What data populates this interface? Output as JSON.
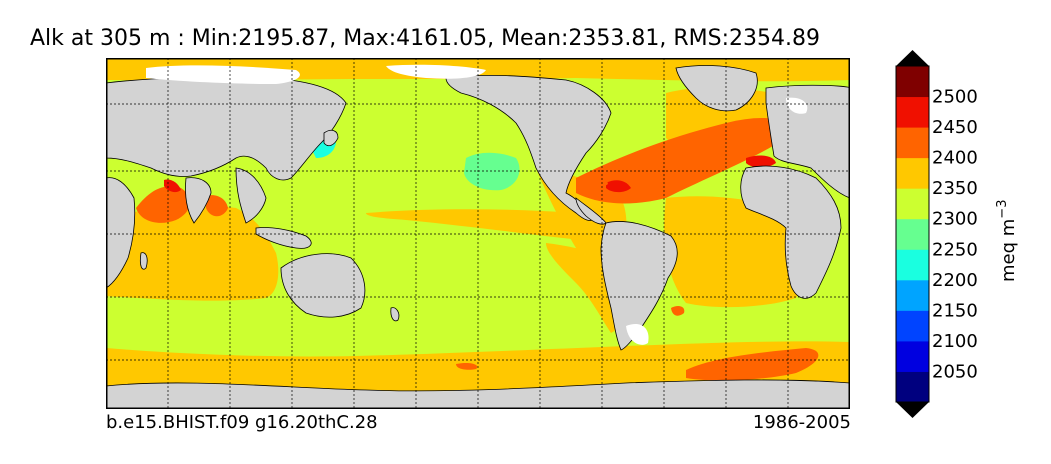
{
  "title": "Alk at 305 m : Min:2195.87, Max:4161.05, Mean:2353.81, RMS:2354.89",
  "case_name": "b.e15.BHIST.f09 g16.20thC.28",
  "years": "1986-2005",
  "colorbar": {
    "units": "meq m",
    "units_exponent": "−3",
    "ticks": [
      "2050",
      "2100",
      "2150",
      "2200",
      "2250",
      "2300",
      "2350",
      "2400",
      "2450",
      "2500"
    ],
    "levels": [
      2000,
      2050,
      2100,
      2150,
      2200,
      2250,
      2300,
      2350,
      2400,
      2450,
      2500,
      2550
    ],
    "colors": [
      "#00007f",
      "#0000e0",
      "#0044ff",
      "#00a4ff",
      "#1affe0",
      "#66ff90",
      "#ccff30",
      "#ffc800",
      "#ff6400",
      "#f01000",
      "#7f0000"
    ],
    "extend_color": "#000000"
  },
  "map": {
    "land_color": "#d3d3d3",
    "ice_color": "#ffffff",
    "coast_color": "#000000",
    "grid_style": "dotted"
  }
}
